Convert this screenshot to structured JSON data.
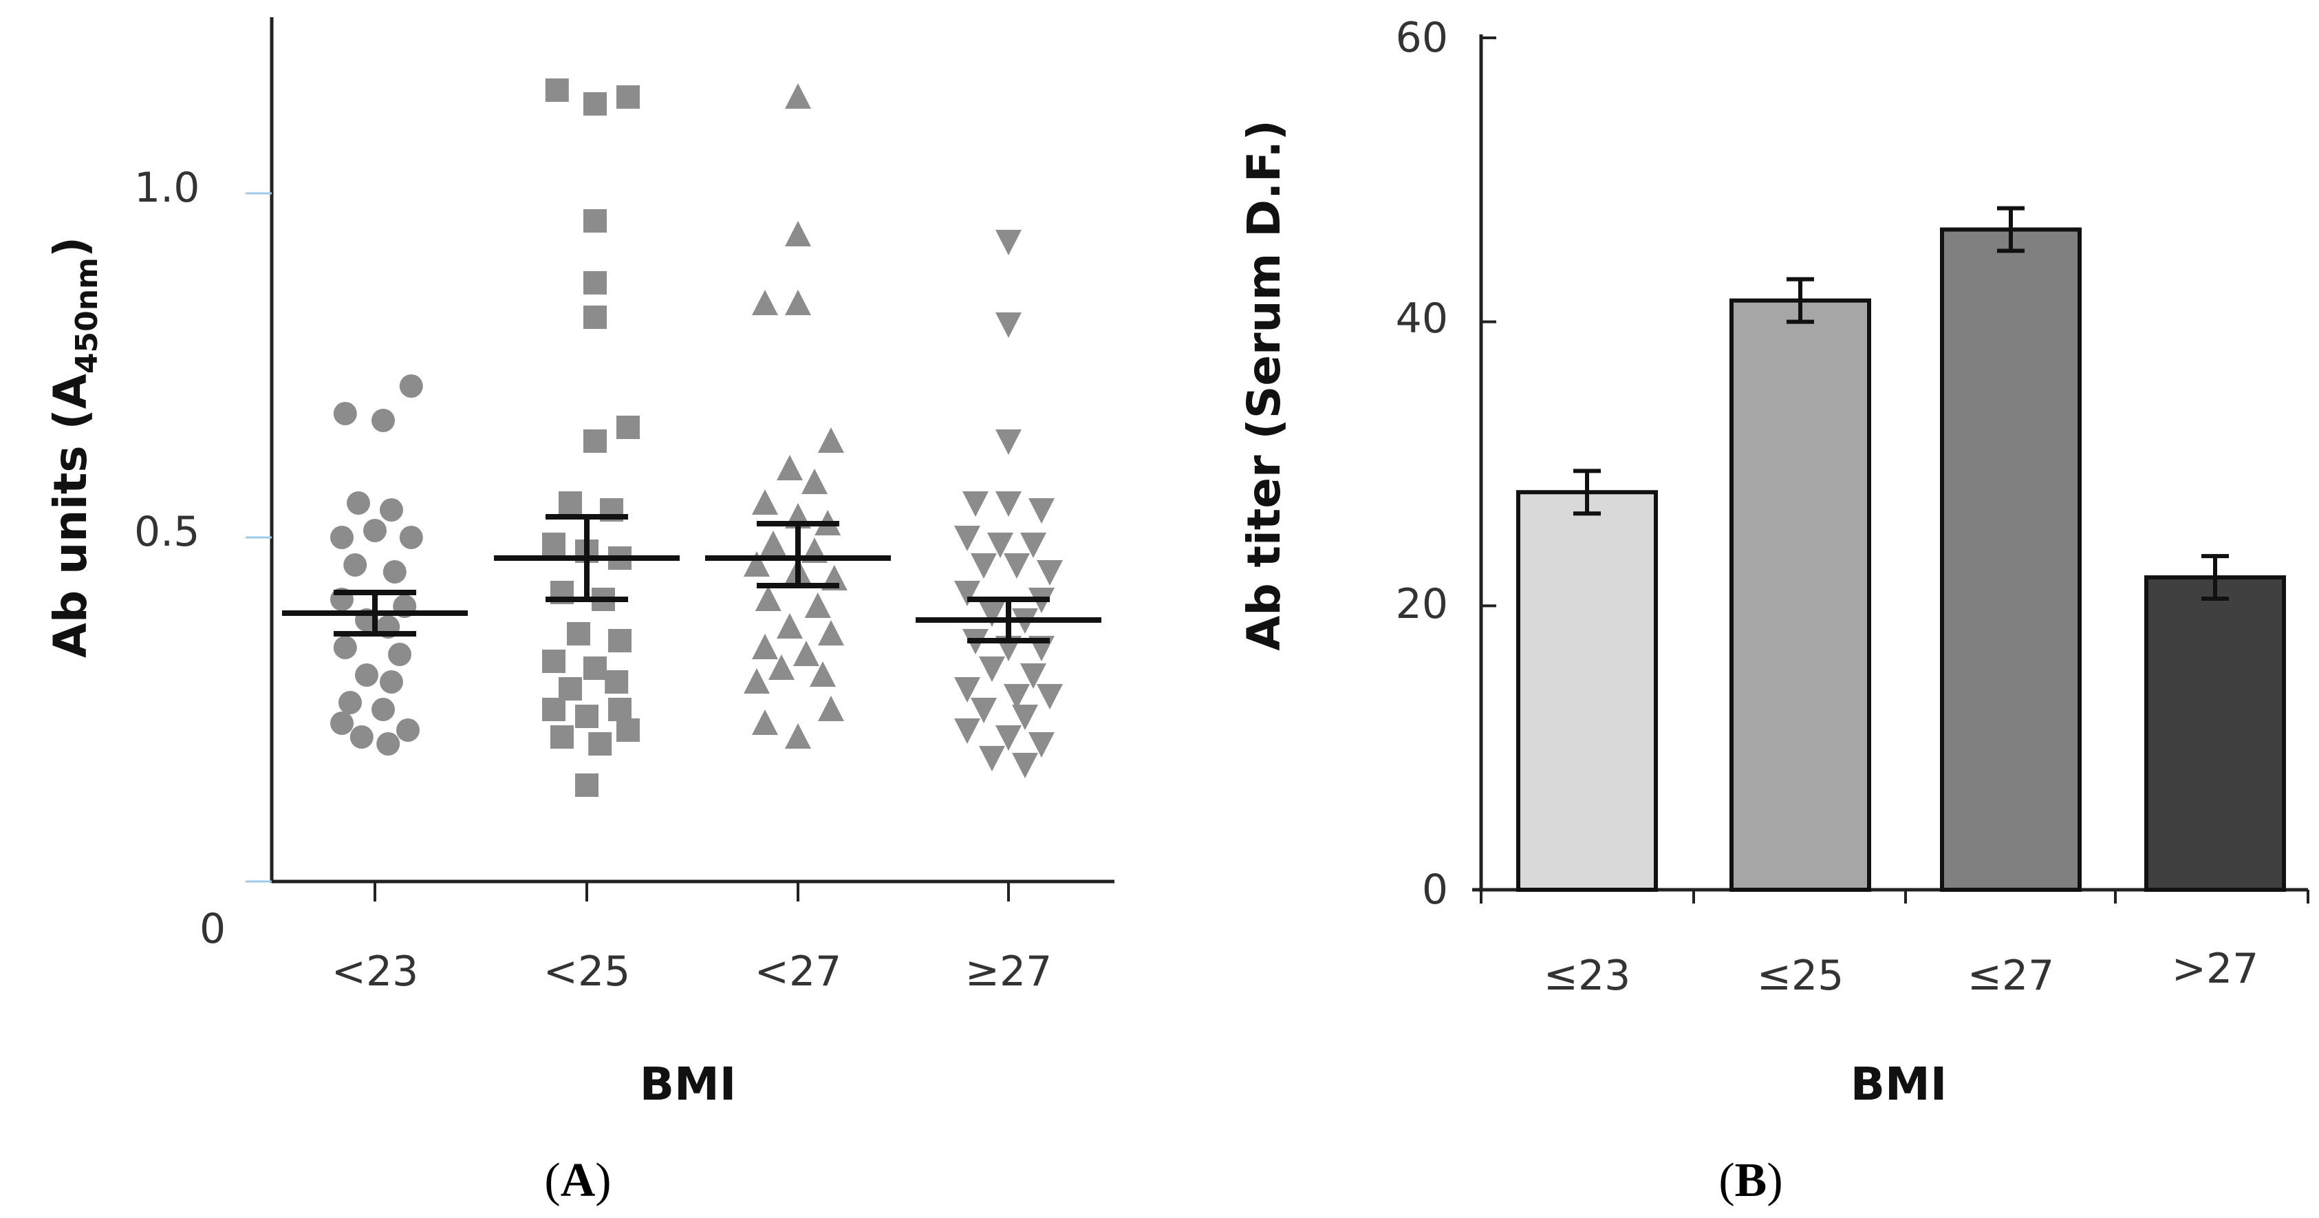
{
  "chart_data": [
    {
      "type": "scatter",
      "panel_label": "A",
      "xlabel": "BMI",
      "ylabel_main": "Ab units (A",
      "ylabel_sub": "450nm",
      "ylabel_close": ")",
      "ylim": [
        0,
        1.25
      ],
      "yticks": [
        {
          "value": 0,
          "label": "0"
        },
        {
          "value": 0.5,
          "label": "0.5"
        },
        {
          "value": 1.0,
          "label": "1.0"
        }
      ],
      "categories": [
        "<23",
        "<25",
        "<27",
        "≥27"
      ],
      "series": [
        {
          "name": "<23",
          "marker": "circle",
          "color": "#8c8c8c",
          "mean": 0.39,
          "sem_low": 0.36,
          "sem_high": 0.42,
          "points": [
            {
              "dx": -0.18,
              "y": 0.68
            },
            {
              "dx": 0.05,
              "y": 0.67
            },
            {
              "dx": 0.22,
              "y": 0.72
            },
            {
              "dx": -0.1,
              "y": 0.55
            },
            {
              "dx": 0.1,
              "y": 0.54
            },
            {
              "dx": -0.2,
              "y": 0.5
            },
            {
              "dx": 0.0,
              "y": 0.51
            },
            {
              "dx": 0.22,
              "y": 0.5
            },
            {
              "dx": -0.12,
              "y": 0.46
            },
            {
              "dx": 0.12,
              "y": 0.45
            },
            {
              "dx": -0.2,
              "y": 0.41
            },
            {
              "dx": 0.18,
              "y": 0.4
            },
            {
              "dx": -0.05,
              "y": 0.38
            },
            {
              "dx": 0.08,
              "y": 0.37
            },
            {
              "dx": -0.18,
              "y": 0.34
            },
            {
              "dx": 0.15,
              "y": 0.33
            },
            {
              "dx": -0.05,
              "y": 0.3
            },
            {
              "dx": 0.1,
              "y": 0.29
            },
            {
              "dx": -0.15,
              "y": 0.26
            },
            {
              "dx": 0.05,
              "y": 0.25
            },
            {
              "dx": -0.2,
              "y": 0.23
            },
            {
              "dx": 0.2,
              "y": 0.22
            },
            {
              "dx": -0.08,
              "y": 0.21
            },
            {
              "dx": 0.08,
              "y": 0.2
            }
          ]
        },
        {
          "name": "<25",
          "marker": "square",
          "color": "#8c8c8c",
          "mean": 0.47,
          "sem_low": 0.41,
          "sem_high": 0.53,
          "points": [
            {
              "dx": -0.18,
              "y": 1.15
            },
            {
              "dx": 0.05,
              "y": 1.13
            },
            {
              "dx": 0.25,
              "y": 1.14
            },
            {
              "dx": 0.05,
              "y": 0.96
            },
            {
              "dx": 0.05,
              "y": 0.87
            },
            {
              "dx": 0.05,
              "y": 0.82
            },
            {
              "dx": 0.25,
              "y": 0.66
            },
            {
              "dx": 0.05,
              "y": 0.64
            },
            {
              "dx": -0.1,
              "y": 0.55
            },
            {
              "dx": 0.15,
              "y": 0.54
            },
            {
              "dx": -0.2,
              "y": 0.49
            },
            {
              "dx": 0.0,
              "y": 0.48
            },
            {
              "dx": 0.2,
              "y": 0.47
            },
            {
              "dx": -0.15,
              "y": 0.42
            },
            {
              "dx": 0.1,
              "y": 0.41
            },
            {
              "dx": -0.05,
              "y": 0.36
            },
            {
              "dx": 0.2,
              "y": 0.35
            },
            {
              "dx": -0.2,
              "y": 0.32
            },
            {
              "dx": 0.05,
              "y": 0.31
            },
            {
              "dx": -0.1,
              "y": 0.28
            },
            {
              "dx": 0.18,
              "y": 0.29
            },
            {
              "dx": -0.2,
              "y": 0.25
            },
            {
              "dx": 0.0,
              "y": 0.24
            },
            {
              "dx": 0.2,
              "y": 0.25
            },
            {
              "dx": -0.15,
              "y": 0.21
            },
            {
              "dx": 0.08,
              "y": 0.2
            },
            {
              "dx": 0.25,
              "y": 0.22
            },
            {
              "dx": 0.0,
              "y": 0.14
            }
          ]
        },
        {
          "name": "<27",
          "marker": "triangle-up",
          "color": "#8c8c8c",
          "mean": 0.47,
          "sem_low": 0.43,
          "sem_high": 0.52,
          "points": [
            {
              "dx": 0.0,
              "y": 1.14
            },
            {
              "dx": 0.0,
              "y": 0.94
            },
            {
              "dx": -0.2,
              "y": 0.84
            },
            {
              "dx": 0.0,
              "y": 0.84
            },
            {
              "dx": 0.2,
              "y": 0.64
            },
            {
              "dx": -0.05,
              "y": 0.6
            },
            {
              "dx": 0.1,
              "y": 0.58
            },
            {
              "dx": -0.2,
              "y": 0.55
            },
            {
              "dx": 0.0,
              "y": 0.53
            },
            {
              "dx": 0.18,
              "y": 0.52
            },
            {
              "dx": -0.15,
              "y": 0.49
            },
            {
              "dx": 0.1,
              "y": 0.48
            },
            {
              "dx": -0.25,
              "y": 0.46
            },
            {
              "dx": 0.0,
              "y": 0.45
            },
            {
              "dx": 0.22,
              "y": 0.44
            },
            {
              "dx": -0.18,
              "y": 0.41
            },
            {
              "dx": 0.12,
              "y": 0.4
            },
            {
              "dx": -0.05,
              "y": 0.37
            },
            {
              "dx": 0.2,
              "y": 0.36
            },
            {
              "dx": -0.2,
              "y": 0.34
            },
            {
              "dx": 0.05,
              "y": 0.33
            },
            {
              "dx": -0.1,
              "y": 0.31
            },
            {
              "dx": 0.15,
              "y": 0.3
            },
            {
              "dx": -0.25,
              "y": 0.29
            },
            {
              "dx": 0.2,
              "y": 0.25
            },
            {
              "dx": -0.2,
              "y": 0.23
            },
            {
              "dx": 0.0,
              "y": 0.21
            }
          ]
        },
        {
          "name": "≥27",
          "marker": "triangle-down",
          "color": "#8c8c8c",
          "mean": 0.38,
          "sem_low": 0.35,
          "sem_high": 0.41,
          "points": [
            {
              "dx": 0.0,
              "y": 0.93
            },
            {
              "dx": 0.0,
              "y": 0.81
            },
            {
              "dx": 0.0,
              "y": 0.64
            },
            {
              "dx": -0.2,
              "y": 0.55
            },
            {
              "dx": 0.0,
              "y": 0.55
            },
            {
              "dx": 0.2,
              "y": 0.54
            },
            {
              "dx": -0.25,
              "y": 0.5
            },
            {
              "dx": -0.05,
              "y": 0.49
            },
            {
              "dx": 0.15,
              "y": 0.49
            },
            {
              "dx": -0.15,
              "y": 0.46
            },
            {
              "dx": 0.05,
              "y": 0.46
            },
            {
              "dx": 0.25,
              "y": 0.45
            },
            {
              "dx": -0.25,
              "y": 0.42
            },
            {
              "dx": 0.2,
              "y": 0.41
            },
            {
              "dx": -0.1,
              "y": 0.39
            },
            {
              "dx": 0.1,
              "y": 0.38
            },
            {
              "dx": -0.2,
              "y": 0.35
            },
            {
              "dx": 0.0,
              "y": 0.34
            },
            {
              "dx": 0.2,
              "y": 0.34
            },
            {
              "dx": -0.1,
              "y": 0.31
            },
            {
              "dx": 0.15,
              "y": 0.3
            },
            {
              "dx": -0.25,
              "y": 0.28
            },
            {
              "dx": 0.05,
              "y": 0.27
            },
            {
              "dx": 0.25,
              "y": 0.27
            },
            {
              "dx": -0.15,
              "y": 0.25
            },
            {
              "dx": 0.1,
              "y": 0.24
            },
            {
              "dx": -0.25,
              "y": 0.22
            },
            {
              "dx": 0.0,
              "y": 0.21
            },
            {
              "dx": 0.2,
              "y": 0.2
            },
            {
              "dx": -0.1,
              "y": 0.18
            },
            {
              "dx": 0.1,
              "y": 0.17
            }
          ]
        }
      ]
    },
    {
      "type": "bar",
      "panel_label": "B",
      "xlabel": "BMI",
      "ylabel": "Ab titer (Serum D.F.)",
      "ylim": [
        0,
        60
      ],
      "yticks": [
        {
          "value": 0,
          "label": "0"
        },
        {
          "value": 20,
          "label": "20"
        },
        {
          "value": 40,
          "label": "40"
        },
        {
          "value": 60,
          "label": "60"
        }
      ],
      "categories": [
        "≤23",
        "≤25",
        "≤27",
        ">27"
      ],
      "values": [
        28,
        41.5,
        46.5,
        22
      ],
      "errors": [
        1.5,
        1.5,
        1.5,
        1.5
      ],
      "colors": [
        "#d9d9d9",
        "#a6a6a6",
        "#808080",
        "#404040"
      ]
    }
  ]
}
